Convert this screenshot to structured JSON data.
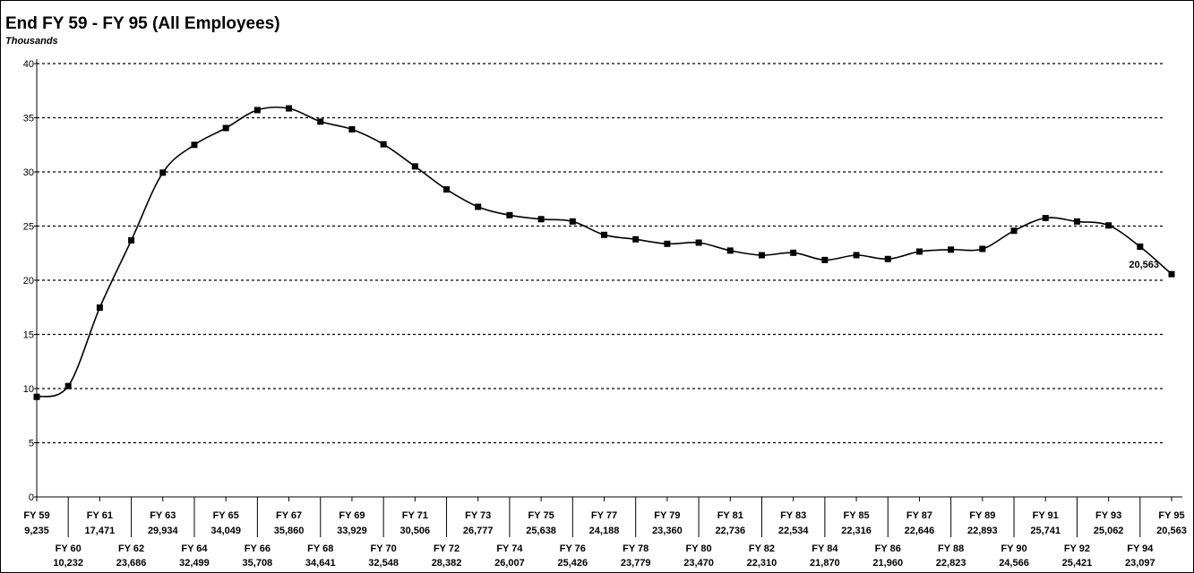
{
  "chart_data": {
    "type": "line",
    "title": "End FY 59 - FY 95 (All Employees)",
    "ylabel": "Thousands",
    "xlabel": "",
    "ylim": [
      0,
      40
    ],
    "yticks": [
      0,
      5,
      10,
      15,
      20,
      25,
      30,
      35,
      40
    ],
    "grid": true,
    "categories": [
      "FY 59",
      "FY 60",
      "FY 61",
      "FY 62",
      "FY 63",
      "FY 64",
      "FY 65",
      "FY 66",
      "FY 67",
      "FY 68",
      "FY 69",
      "FY 70",
      "FY 71",
      "FY 72",
      "FY 73",
      "FY 74",
      "FY 75",
      "FY 76",
      "FY 77",
      "FY 78",
      "FY 79",
      "FY 80",
      "FY 81",
      "FY 82",
      "FY 83",
      "FY 84",
      "FY 85",
      "FY 86",
      "FY 87",
      "FY 88",
      "FY 89",
      "FY 90",
      "FY 91",
      "FY 92",
      "FY 93",
      "FY 94",
      "FY 95"
    ],
    "value_labels": [
      "9,235",
      "10,232",
      "17,471",
      "23,686",
      "29,934",
      "32,499",
      "34,049",
      "35,708",
      "35,860",
      "34,641",
      "33,929",
      "32,548",
      "30,506",
      "28,382",
      "26,777",
      "26,007",
      "25,638",
      "25,426",
      "24,188",
      "23,779",
      "23,360",
      "23,470",
      "22,736",
      "22,310",
      "22,534",
      "21,870",
      "22,316",
      "21,960",
      "22,646",
      "22,823",
      "22,893",
      "24,566",
      "25,741",
      "25,421",
      "25,062",
      "23,097",
      "20,563"
    ],
    "values": [
      9.235,
      10.232,
      17.471,
      23.686,
      29.934,
      32.499,
      34.049,
      35.708,
      35.86,
      34.641,
      33.929,
      32.548,
      30.506,
      28.382,
      26.777,
      26.007,
      25.638,
      25.426,
      24.188,
      23.779,
      23.36,
      23.47,
      22.736,
      22.31,
      22.534,
      21.87,
      22.316,
      21.96,
      22.646,
      22.823,
      22.893,
      24.566,
      25.741,
      25.421,
      25.062,
      23.097,
      20.563
    ],
    "annotation": "20,563"
  }
}
